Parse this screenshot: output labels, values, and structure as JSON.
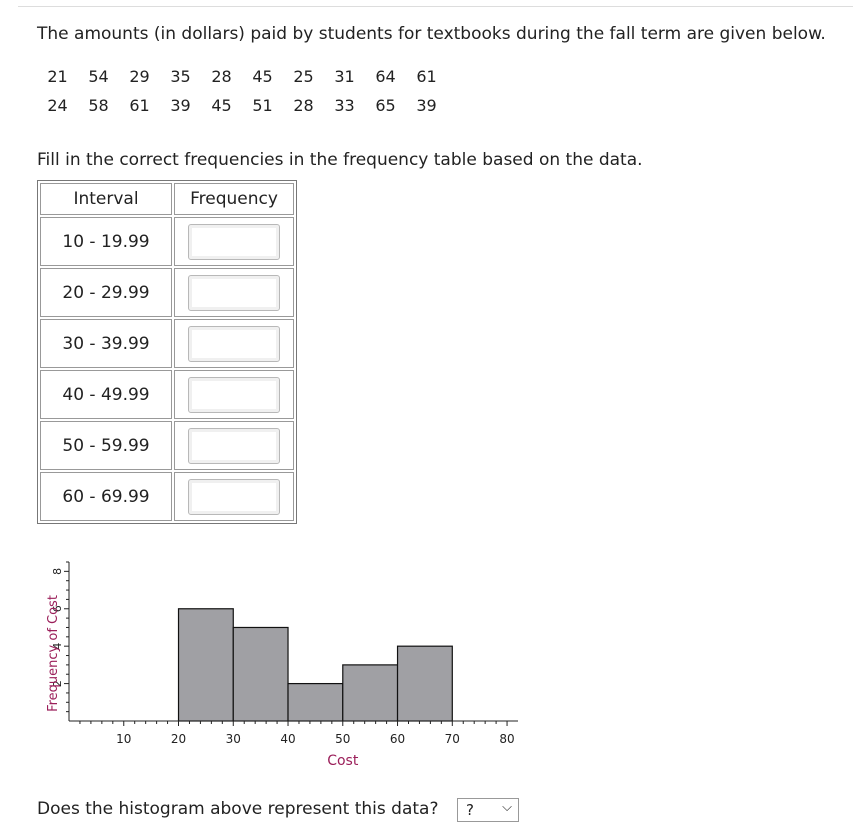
{
  "intro": "The amounts (in dollars) paid by students for textbooks during the fall term are given below.",
  "data_rows": [
    [
      "21",
      "54",
      "29",
      "35",
      "28",
      "45",
      "25",
      "31",
      "64",
      "61"
    ],
    [
      "24",
      "58",
      "61",
      "39",
      "45",
      "51",
      "28",
      "33",
      "65",
      "39"
    ]
  ],
  "instruction": "Fill in the correct frequencies in the frequency table based on the data.",
  "table": {
    "headers": [
      "Interval",
      "Frequency"
    ],
    "rows": [
      {
        "interval": "10 - 19.99",
        "value": ""
      },
      {
        "interval": "20 - 29.99",
        "value": ""
      },
      {
        "interval": "30 - 39.99",
        "value": ""
      },
      {
        "interval": "40 - 49.99",
        "value": ""
      },
      {
        "interval": "50 - 59.99",
        "value": ""
      },
      {
        "interval": "60 - 69.99",
        "value": ""
      }
    ]
  },
  "chart_data": {
    "type": "bar",
    "bins": [
      [
        20,
        30
      ],
      [
        30,
        40
      ],
      [
        40,
        50
      ],
      [
        50,
        60
      ],
      [
        60,
        70
      ]
    ],
    "values": [
      6,
      5,
      2,
      3,
      4
    ],
    "xlabel": "Cost",
    "ylabel": "Frequency of Cost",
    "xticks": [
      "10",
      "20",
      "30",
      "40",
      "50",
      "60",
      "70",
      "80"
    ],
    "xtick_values": [
      10,
      20,
      30,
      40,
      50,
      60,
      70,
      80
    ],
    "yticks": [
      "2",
      "4",
      "6",
      "8"
    ],
    "ytick_values": [
      2,
      4,
      6,
      8
    ],
    "xlim": [
      0,
      82
    ],
    "ylim": [
      0,
      8.5
    ],
    "bar_color": "#a0a0a4",
    "label_color": "#9b1f5a"
  },
  "question": "Does the histogram above represent this data?",
  "select": {
    "value": "?"
  }
}
